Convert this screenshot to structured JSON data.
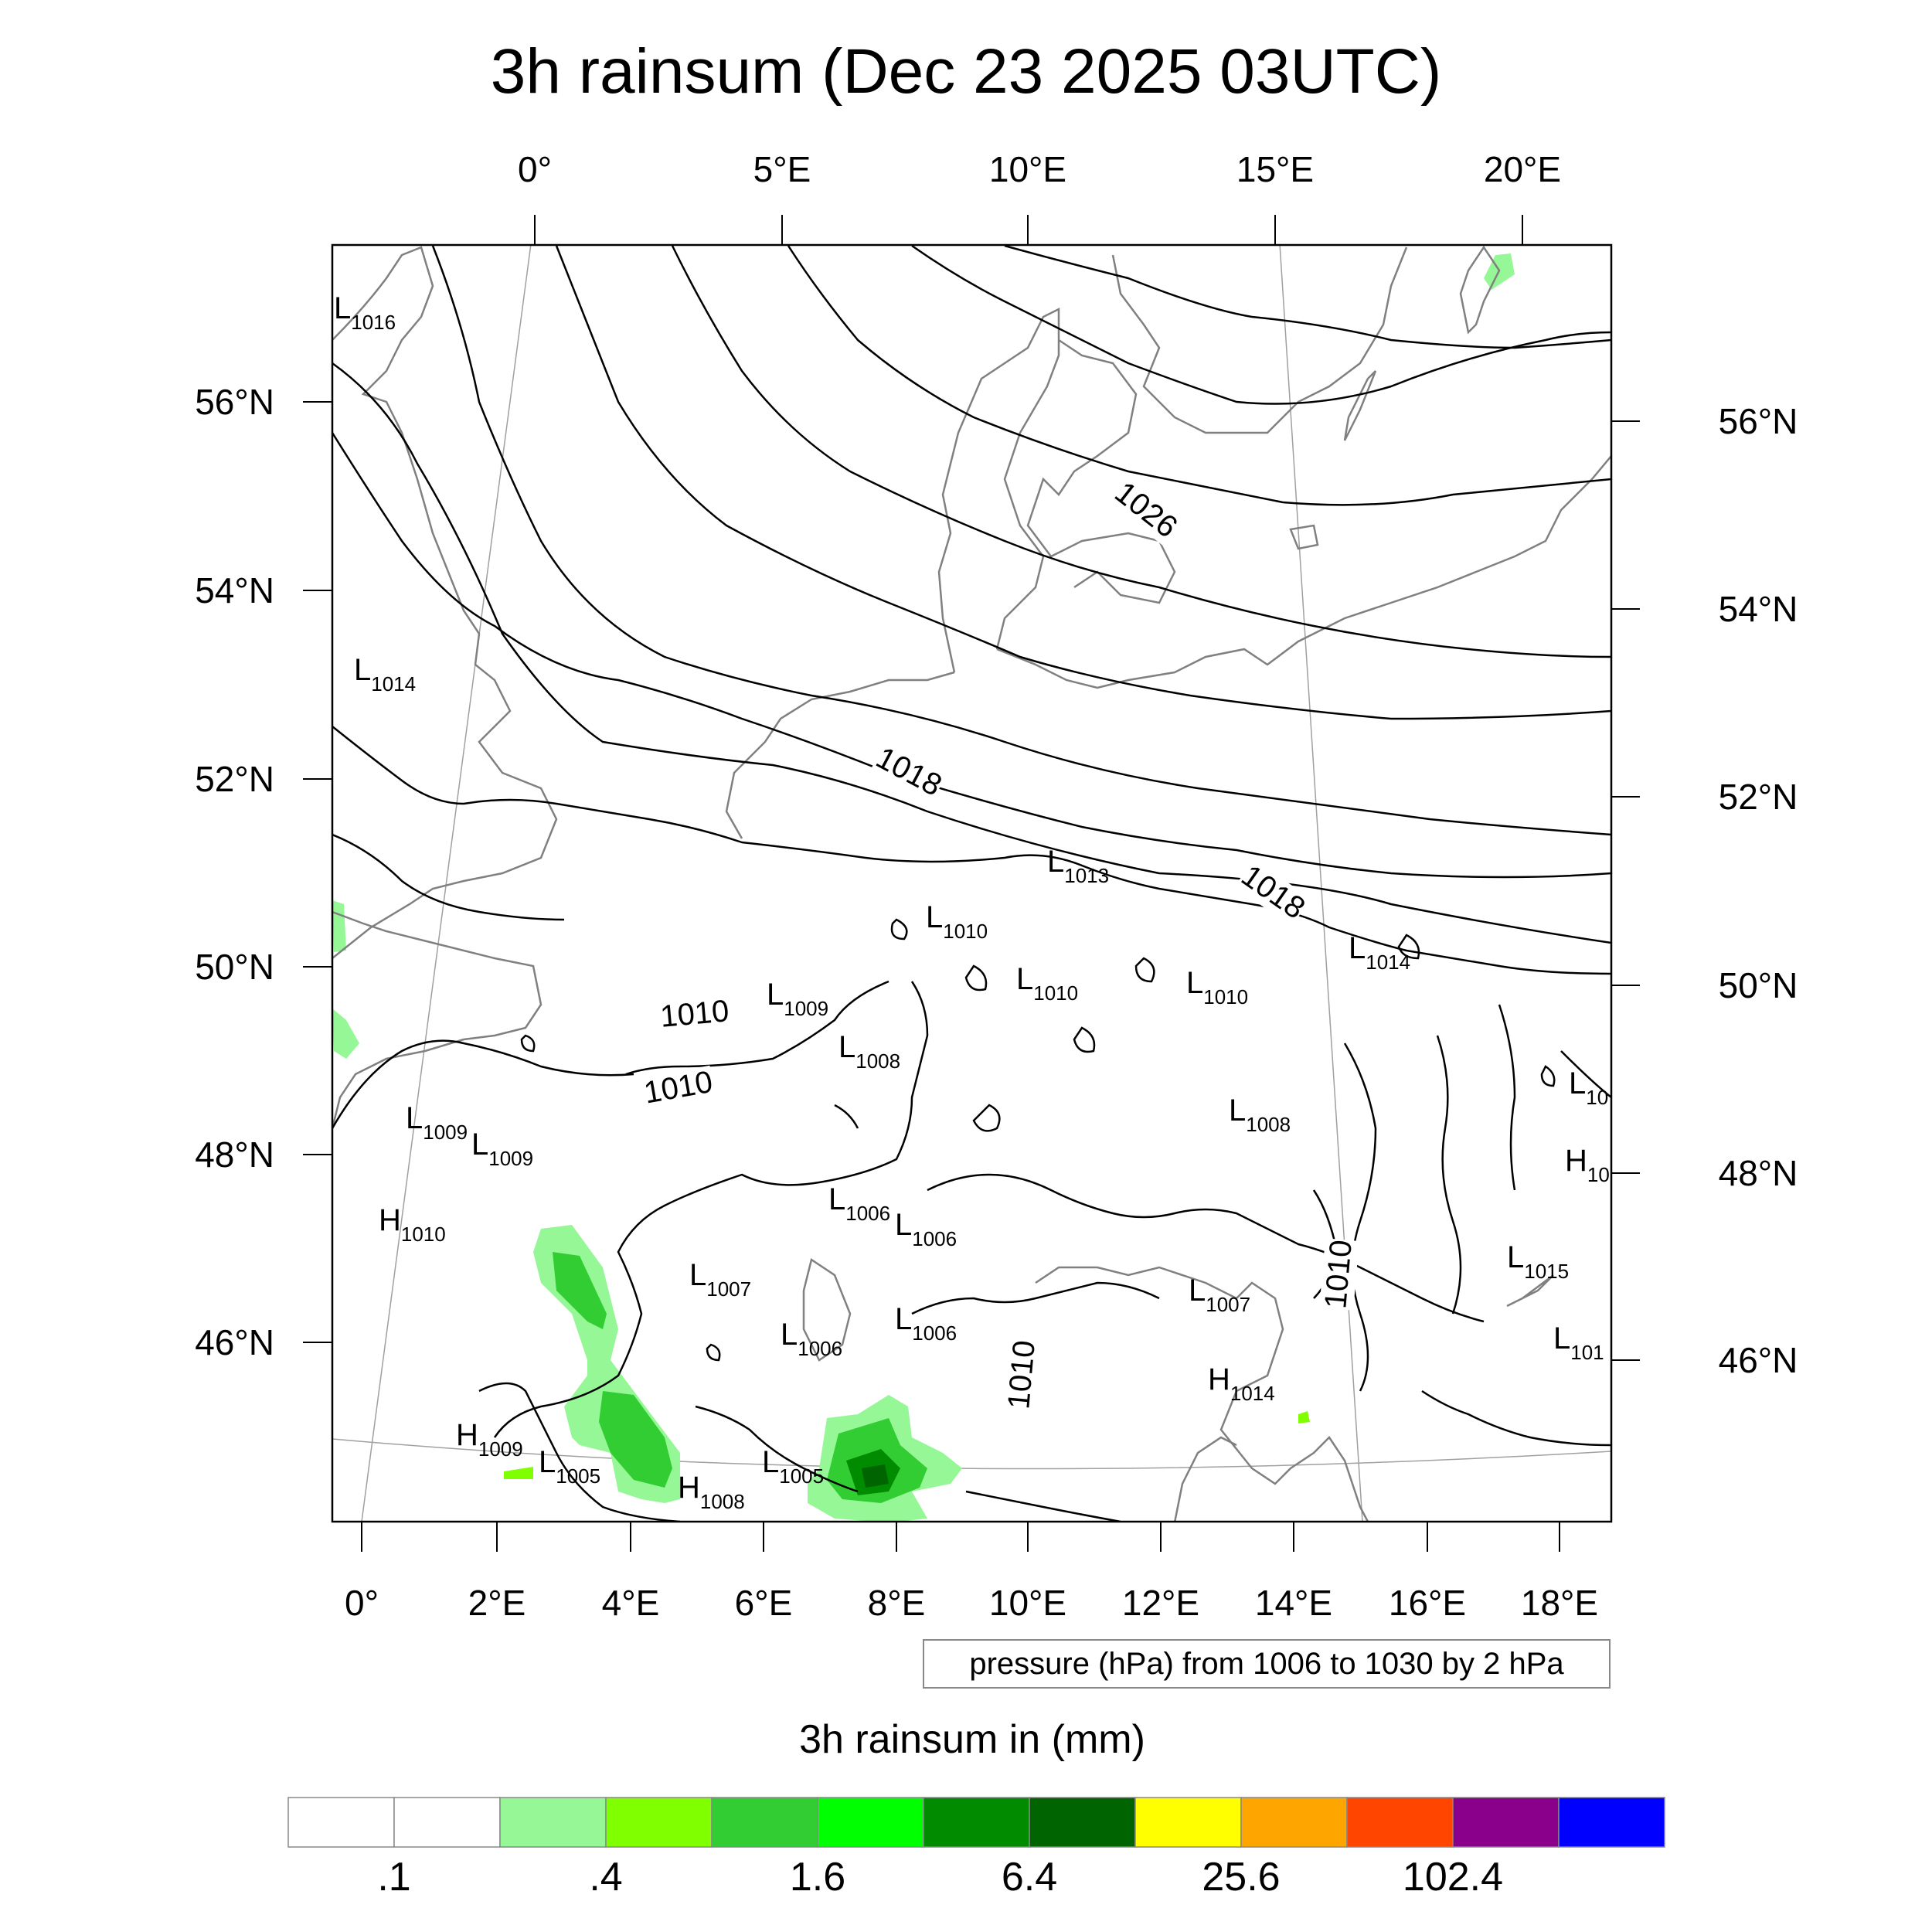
{
  "title": "3h rainsum (Dec 23 2025 03UTC)",
  "top_lon_labels": [
    "0°",
    "5°E",
    "10°E",
    "15°E",
    "20°E"
  ],
  "bottom_lon_labels": [
    "0°",
    "2°E",
    "4°E",
    "6°E",
    "8°E",
    "10°E",
    "12°E",
    "14°E",
    "16°E",
    "18°E"
  ],
  "left_lat_labels": [
    "56°N",
    "54°N",
    "52°N",
    "50°N",
    "48°N",
    "46°N"
  ],
  "right_lat_labels": [
    "56°N",
    "54°N",
    "52°N",
    "50°N",
    "48°N",
    "46°N"
  ],
  "pressure_note": "pressure (hPa) from 1006 to 1030 by 2 hPa",
  "pressure_centers": [
    {
      "t": "L",
      "v": "1016"
    },
    {
      "t": "L",
      "v": "1014"
    },
    {
      "t": "L",
      "v": "1013"
    },
    {
      "t": "L",
      "v": "1010"
    },
    {
      "t": "L",
      "v": "1014"
    },
    {
      "t": "L",
      "v": "1009"
    },
    {
      "t": "L",
      "v": "1010"
    },
    {
      "t": "L",
      "v": "1010"
    },
    {
      "t": "L",
      "v": "1008"
    },
    {
      "t": "L",
      "v": "1009"
    },
    {
      "t": "L",
      "v": "1009"
    },
    {
      "t": "H",
      "v": "1010"
    },
    {
      "t": "L",
      "v": "1008"
    },
    {
      "t": "L",
      "v": "1006"
    },
    {
      "t": "L",
      "v": "1006"
    },
    {
      "t": "L",
      "v": "1007"
    },
    {
      "t": "L",
      "v": "1007"
    },
    {
      "t": "L",
      "v": "1006"
    },
    {
      "t": "L",
      "v": "1006"
    },
    {
      "t": "H",
      "v": "1014"
    },
    {
      "t": "H",
      "v": "1009"
    },
    {
      "t": "L",
      "v": "1005"
    },
    {
      "t": "H",
      "v": "1008"
    },
    {
      "t": "L",
      "v": "1005"
    },
    {
      "t": "L",
      "v": "1015"
    },
    {
      "t": "L",
      "v": "10"
    },
    {
      "t": "H",
      "v": "10"
    },
    {
      "t": "L",
      "v": "101"
    }
  ],
  "contour_labels": [
    "1026",
    "1018",
    "1018",
    "1010",
    "1010",
    "1010",
    "1010"
  ],
  "colorbar": {
    "title": "3h rainsum in (mm)",
    "colors": [
      "#ffffff",
      "#ffffff",
      "#96f796",
      "#80ff00",
      "#32cd32",
      "#00ff00",
      "#008b00",
      "#006400",
      "#ffff00",
      "#ffa500",
      "#ff4500",
      "#8b008b",
      "#0000ff"
    ],
    "labels": [
      ".1",
      ".4",
      "1.6",
      "6.4",
      "25.6",
      "102.4"
    ]
  },
  "colors": {
    "coast": "#808080",
    "isobar": "#000000",
    "frame": "#000000",
    "grid": "#a0a0a0"
  }
}
